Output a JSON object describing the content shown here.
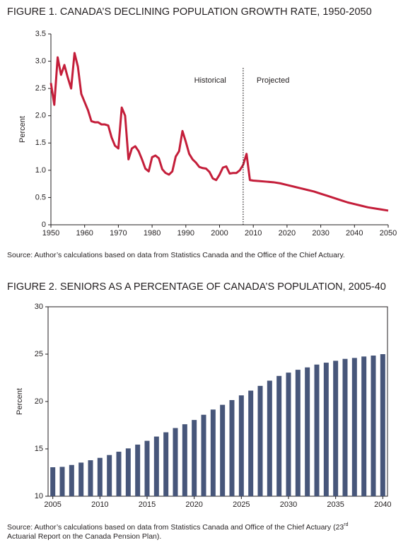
{
  "chart_data": [
    {
      "type": "line",
      "title": "FIGURE 1. CANADA’S DECLINING POPULATION GROWTH RATE, 1950-2050",
      "source": [
        "Source: Author’s calculations based on data from Statistics Canada and the Office of the Chief Actuary."
      ],
      "ylabel": "Percent",
      "annotations": [
        "Historical",
        "Projected"
      ],
      "projection_start": 2007,
      "x": [
        1950,
        1951,
        1952,
        1953,
        1954,
        1955,
        1956,
        1957,
        1958,
        1959,
        1960,
        1961,
        1962,
        1963,
        1964,
        1965,
        1966,
        1967,
        1968,
        1969,
        1970,
        1971,
        1972,
        1973,
        1974,
        1975,
        1976,
        1977,
        1978,
        1979,
        1980,
        1981,
        1982,
        1983,
        1984,
        1985,
        1986,
        1987,
        1988,
        1989,
        1990,
        1991,
        1992,
        1993,
        1994,
        1995,
        1996,
        1997,
        1998,
        1999,
        2000,
        2001,
        2002,
        2003,
        2004,
        2005,
        2006,
        2007,
        2008,
        2009,
        2010,
        2012,
        2014,
        2016,
        2018,
        2020,
        2022,
        2024,
        2026,
        2028,
        2030,
        2032,
        2034,
        2036,
        2038,
        2040,
        2042,
        2044,
        2046,
        2048,
        2050
      ],
      "values": [
        2.6,
        2.2,
        3.07,
        2.75,
        2.93,
        2.7,
        2.5,
        3.15,
        2.9,
        2.4,
        2.25,
        2.1,
        1.9,
        1.88,
        1.88,
        1.84,
        1.84,
        1.82,
        1.6,
        1.45,
        1.4,
        2.15,
        2.0,
        1.2,
        1.4,
        1.44,
        1.35,
        1.2,
        1.03,
        0.98,
        1.24,
        1.27,
        1.22,
        1.02,
        0.95,
        0.92,
        0.98,
        1.25,
        1.35,
        1.72,
        1.52,
        1.3,
        1.2,
        1.14,
        1.06,
        1.04,
        1.03,
        0.97,
        0.85,
        0.82,
        0.92,
        1.05,
        1.07,
        0.94,
        0.95,
        0.95,
        1.0,
        1.1,
        1.3,
        0.82,
        0.81,
        0.8,
        0.79,
        0.78,
        0.76,
        0.73,
        0.7,
        0.67,
        0.64,
        0.61,
        0.57,
        0.53,
        0.49,
        0.45,
        0.41,
        0.38,
        0.35,
        0.32,
        0.3,
        0.28,
        0.26
      ],
      "color": "#c41e3a",
      "xlim": [
        1950,
        2050
      ],
      "ylim": [
        0,
        3.5
      ],
      "xticks": [
        1950,
        1960,
        1970,
        1980,
        1990,
        2000,
        2010,
        2020,
        2030,
        2040,
        2050
      ],
      "yticks": [
        0,
        0.5,
        {
          "value": 1,
          "label": "1.0"
        },
        1.5,
        {
          "value": 2,
          "label": "2.0"
        },
        2.5,
        {
          "value": 3,
          "label": "3.0"
        },
        3.5
      ],
      "frame": false
    },
    {
      "type": "bar",
      "title": "FIGURE 2. SENIORS AS A PERCENTAGE OF CANADA’S POPULATION, 2005-40",
      "source": [
        "Source: Author’s calculations based on data from Statistics Canada and Office of the Chief Actuary (23",
        "rd",
        "Actuarial Report on the Canada Pension Plan)."
      ],
      "ylabel": "Percent",
      "x": [
        2005,
        2006,
        2007,
        2008,
        2009,
        2010,
        2011,
        2012,
        2013,
        2014,
        2015,
        2016,
        2017,
        2018,
        2019,
        2020,
        2021,
        2022,
        2023,
        2024,
        2025,
        2026,
        2027,
        2028,
        2029,
        2030,
        2031,
        2032,
        2033,
        2034,
        2035,
        2036,
        2037,
        2038,
        2039,
        2040
      ],
      "values": [
        13.06,
        13.1,
        13.3,
        13.55,
        13.8,
        14.05,
        14.35,
        14.7,
        15.05,
        15.45,
        15.85,
        16.3,
        16.75,
        17.2,
        17.6,
        18.05,
        18.6,
        19.15,
        19.65,
        20.15,
        20.65,
        21.15,
        21.65,
        22.2,
        22.7,
        23.05,
        23.35,
        23.6,
        23.9,
        24.1,
        24.3,
        24.5,
        24.6,
        24.75,
        24.85,
        25.0
      ],
      "color": "#47567a",
      "xlim": [
        2004.5,
        2040.5
      ],
      "ylim": [
        10,
        30
      ],
      "xticks": [
        2005,
        2010,
        2015,
        2020,
        2025,
        2030,
        2035,
        2040
      ],
      "yticks": [
        10,
        15,
        20,
        25,
        30
      ],
      "frame": true
    }
  ]
}
